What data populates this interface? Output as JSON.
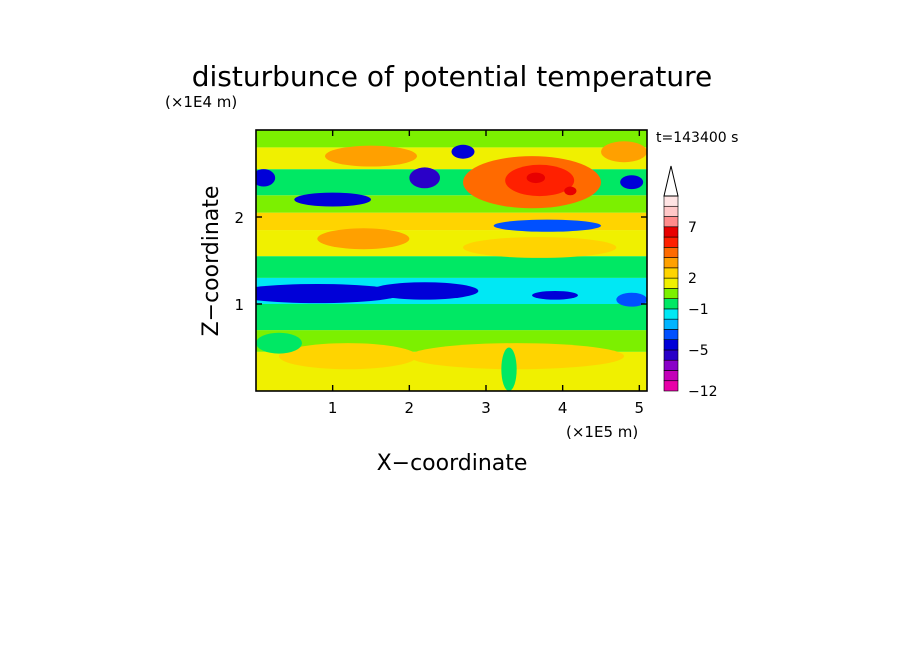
{
  "chart_data": {
    "type": "heatmap",
    "title": "disturbunce of potential temperature",
    "xlabel": "X−coordinate",
    "ylabel": "Z−coordinate",
    "x_unit": "(×1E5 m)",
    "y_unit": "(×1E4 m)",
    "time_label": "t=143400 s",
    "xlim": [
      0,
      5.1
    ],
    "ylim": [
      0,
      3.0
    ],
    "x_ticks": [
      1,
      2,
      3,
      4,
      5
    ],
    "x_tick_labels": [
      "1",
      "2",
      "3",
      "4",
      "5"
    ],
    "y_ticks": [
      1,
      2
    ],
    "y_tick_labels": [
      "1",
      "2"
    ],
    "colorbar": {
      "levels": [
        -12,
        -10,
        -8,
        -6,
        -5,
        -4,
        -3,
        -2,
        -1,
        0,
        1,
        2,
        3,
        4,
        5,
        6,
        7,
        8,
        9,
        10
      ],
      "tick_values": [
        -12,
        -5,
        -1,
        2,
        7
      ],
      "tick_labels": [
        "−12",
        "−5",
        "−1",
        "2",
        "7"
      ],
      "colors": [
        "#e800a8",
        "#c400b8",
        "#8a00c8",
        "#2a00c8",
        "#0000d8",
        "#0050ff",
        "#00b4ff",
        "#00e8f4",
        "#00e864",
        "#7cf000",
        "#f0f000",
        "#ffd400",
        "#ffa000",
        "#ff6a00",
        "#ff2000",
        "#e80000",
        "#ff8c8c",
        "#ffc8c8",
        "#ffe4e4"
      ],
      "extend": "max"
    },
    "bands": [
      {
        "z0": 0.0,
        "z1": 0.45,
        "value": 1.5
      },
      {
        "z0": 0.45,
        "z1": 0.7,
        "value": 0.5
      },
      {
        "z0": 0.7,
        "z1": 1.0,
        "value": -0.5
      },
      {
        "z0": 1.0,
        "z1": 1.3,
        "value": -1.5
      },
      {
        "z0": 1.3,
        "z1": 1.55,
        "value": -0.5
      },
      {
        "z0": 1.55,
        "z1": 1.85,
        "value": 1.5
      },
      {
        "z0": 1.85,
        "z1": 2.05,
        "value": 2.5
      },
      {
        "z0": 2.05,
        "z1": 2.25,
        "value": 0.5
      },
      {
        "z0": 2.25,
        "z1": 2.55,
        "value": -0.5
      },
      {
        "z0": 2.55,
        "z1": 2.8,
        "value": 1.5
      },
      {
        "z0": 2.8,
        "z1": 3.0,
        "value": 0.5
      }
    ],
    "features": [
      {
        "cx": 0.8,
        "cz": 1.12,
        "rx": 1.1,
        "rz": 0.11,
        "value": -4.5
      },
      {
        "cx": 2.2,
        "cz": 1.15,
        "rx": 0.7,
        "rz": 0.1,
        "value": -4.5
      },
      {
        "cx": 3.9,
        "cz": 1.1,
        "rx": 0.3,
        "rz": 0.05,
        "value": -4.5
      },
      {
        "cx": 4.9,
        "cz": 1.05,
        "rx": 0.2,
        "rz": 0.08,
        "value": -3.5
      },
      {
        "cx": 1.0,
        "cz": 2.2,
        "rx": 0.5,
        "rz": 0.08,
        "value": -4.5
      },
      {
        "cx": 2.2,
        "cz": 2.45,
        "rx": 0.2,
        "rz": 0.12,
        "value": -5.5
      },
      {
        "cx": 0.1,
        "cz": 2.45,
        "rx": 0.15,
        "rz": 0.1,
        "value": -4.5
      },
      {
        "cx": 2.7,
        "cz": 2.75,
        "rx": 0.15,
        "rz": 0.08,
        "value": -4.5
      },
      {
        "cx": 3.6,
        "cz": 2.4,
        "rx": 0.9,
        "rz": 0.3,
        "value": 4.5
      },
      {
        "cx": 3.7,
        "cz": 2.42,
        "rx": 0.45,
        "rz": 0.18,
        "value": 5.5
      },
      {
        "cx": 3.65,
        "cz": 2.45,
        "rx": 0.12,
        "rz": 0.06,
        "value": 6.5
      },
      {
        "cx": 4.1,
        "cz": 2.3,
        "rx": 0.08,
        "rz": 0.05,
        "value": 6.5
      },
      {
        "cx": 1.5,
        "cz": 2.7,
        "rx": 0.6,
        "rz": 0.12,
        "value": 3.5
      },
      {
        "cx": 3.8,
        "cz": 1.9,
        "rx": 0.7,
        "rz": 0.07,
        "value": -3.5
      },
      {
        "cx": 4.8,
        "cz": 2.75,
        "rx": 0.3,
        "rz": 0.12,
        "value": 3.5
      },
      {
        "cx": 4.9,
        "cz": 2.4,
        "rx": 0.15,
        "rz": 0.08,
        "value": -4.5
      },
      {
        "cx": 1.4,
        "cz": 1.75,
        "rx": 0.6,
        "rz": 0.12,
        "value": 3.5
      },
      {
        "cx": 1.2,
        "cz": 0.4,
        "rx": 0.9,
        "rz": 0.15,
        "value": 2.5
      },
      {
        "cx": 3.4,
        "cz": 0.4,
        "rx": 1.4,
        "rz": 0.15,
        "value": 2.5
      },
      {
        "cx": 3.3,
        "cz": 0.25,
        "rx": 0.1,
        "rz": 0.25,
        "value": -0.5
      },
      {
        "cx": 0.3,
        "cz": 0.55,
        "rx": 0.3,
        "rz": 0.12,
        "value": -0.5
      },
      {
        "cx": 3.7,
        "cz": 1.65,
        "rx": 1.0,
        "rz": 0.12,
        "value": 2.5
      }
    ]
  }
}
